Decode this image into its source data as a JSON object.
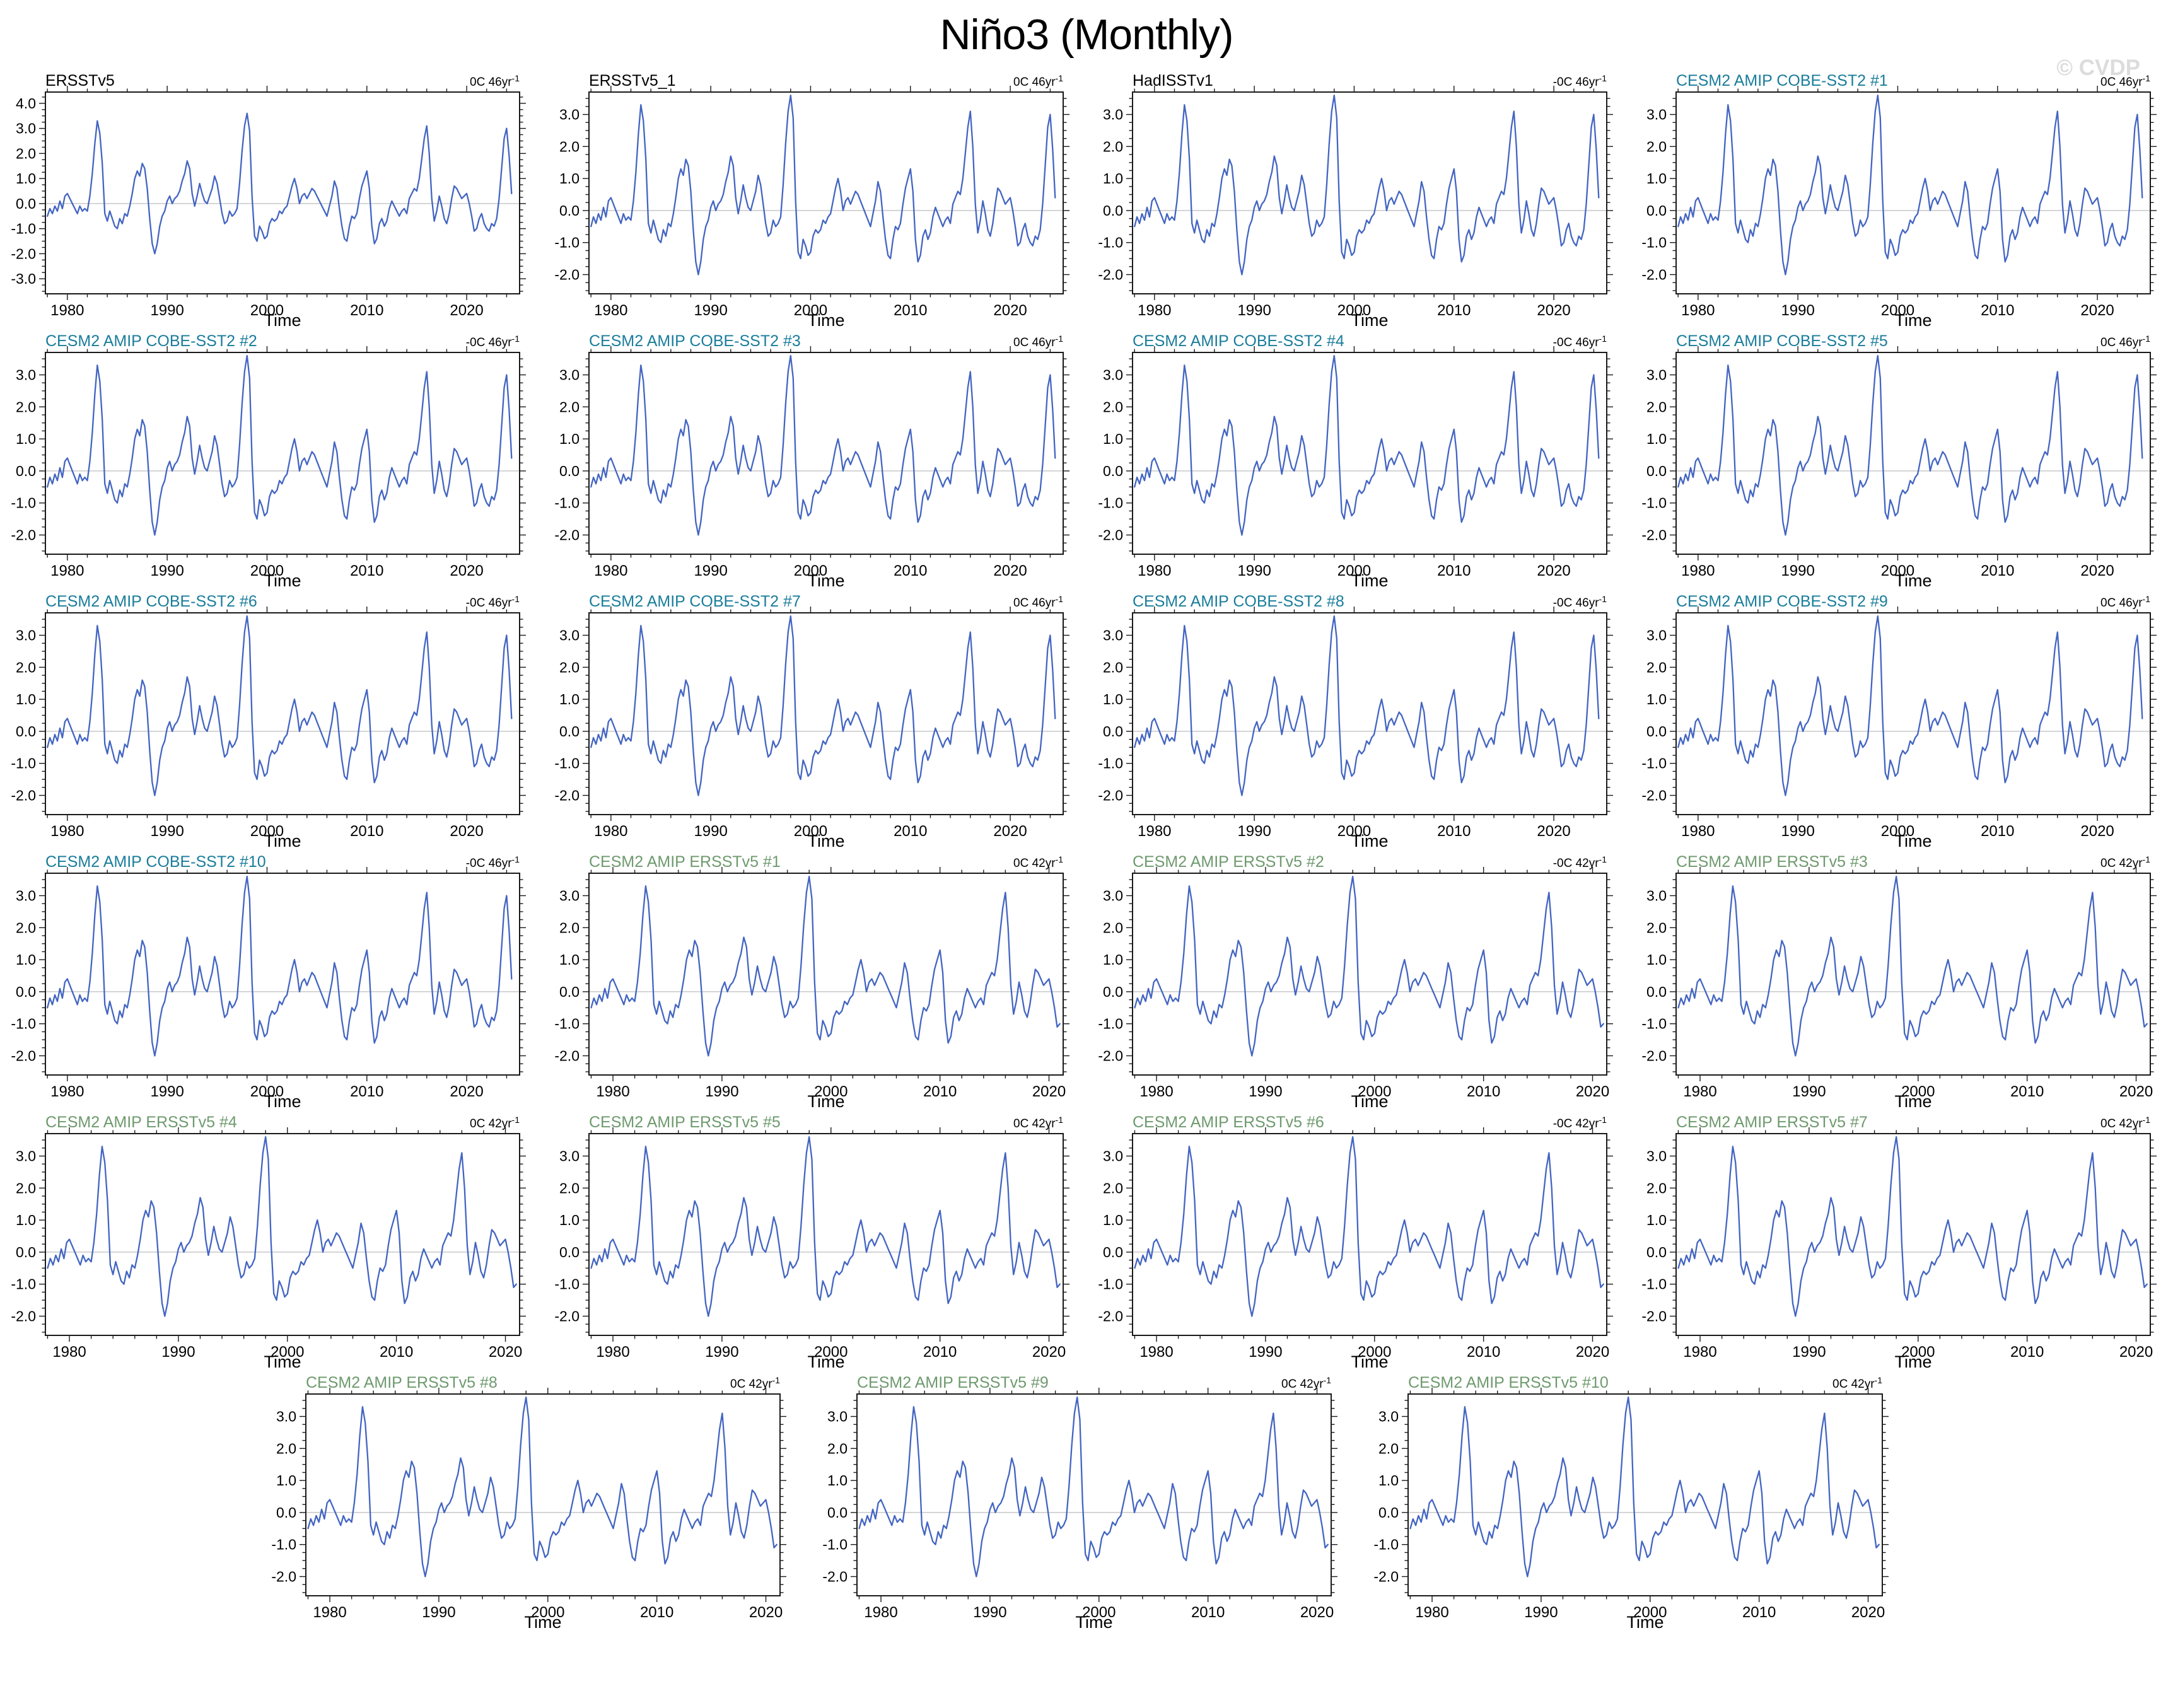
{
  "page": {
    "title": "Niño3 (Monthly)",
    "watermark": "© CVDP"
  },
  "colors": {
    "obs": "#000000",
    "cobe": "#1a7d9b",
    "ersst": "#6e9a6e",
    "line": "#4365c2",
    "zero_line": "#c8c8c8",
    "axis": "#1a1a1a",
    "watermark": "#dcdcdc"
  },
  "chart_data": {
    "type": "line",
    "title": "Niño3 (Monthly)",
    "xlabel": "Time",
    "ylabel": "",
    "grid": false,
    "legend": "none",
    "x_start": 1978.0,
    "x_step": 0.25,
    "x_major_ticks": [
      1980,
      1990,
      2000,
      2010,
      2020
    ],
    "x_minor_step": 2,
    "y_minor_step": 0.25,
    "series_values": [
      -0.5,
      -0.2,
      -0.4,
      -0.1,
      -0.3,
      0.1,
      -0.2,
      0.3,
      0.4,
      0.2,
      0.0,
      -0.2,
      -0.4,
      -0.1,
      -0.3,
      -0.2,
      -0.3,
      0.3,
      1.2,
      2.4,
      3.3,
      2.8,
      1.6,
      -0.4,
      -0.7,
      -0.3,
      -0.6,
      -0.9,
      -1.0,
      -0.6,
      -0.8,
      -0.4,
      -0.5,
      -0.1,
      0.4,
      1.0,
      1.3,
      1.1,
      1.6,
      1.4,
      0.6,
      -0.6,
      -1.6,
      -2.0,
      -1.6,
      -0.9,
      -0.5,
      -0.3,
      0.1,
      0.3,
      0.0,
      0.2,
      0.3,
      0.5,
      0.9,
      1.2,
      1.7,
      1.4,
      0.4,
      -0.1,
      0.3,
      0.8,
      0.4,
      0.1,
      0.0,
      0.3,
      0.6,
      1.1,
      0.8,
      0.2,
      -0.4,
      -0.8,
      -0.7,
      -0.3,
      -0.5,
      -0.4,
      -0.2,
      0.8,
      2.1,
      3.1,
      3.6,
      2.9,
      0.3,
      -1.3,
      -1.5,
      -0.9,
      -1.1,
      -1.4,
      -1.3,
      -0.8,
      -0.6,
      -0.7,
      -0.6,
      -0.3,
      -0.4,
      -0.2,
      -0.1,
      0.3,
      0.7,
      1.0,
      0.6,
      0.0,
      0.3,
      0.4,
      0.2,
      0.4,
      0.6,
      0.5,
      0.3,
      0.1,
      -0.1,
      -0.3,
      -0.5,
      -0.1,
      0.3,
      0.9,
      0.6,
      -0.2,
      -0.9,
      -1.4,
      -1.5,
      -0.9,
      -0.5,
      -0.6,
      -0.4,
      0.2,
      0.7,
      1.0,
      1.3,
      0.6,
      -0.9,
      -1.6,
      -1.4,
      -0.8,
      -0.6,
      -0.9,
      -0.7,
      -0.2,
      0.1,
      -0.1,
      -0.3,
      -0.5,
      -0.3,
      -0.2,
      -0.4,
      0.2,
      0.4,
      0.6,
      0.5,
      1.0,
      1.8,
      2.6,
      3.1,
      2.0,
      0.2,
      -0.7,
      -0.3,
      0.3,
      -0.1,
      -0.6,
      -0.8,
      -0.4,
      0.2,
      0.7,
      0.6,
      0.4,
      0.2,
      0.3,
      0.4,
      0.0,
      -0.5,
      -1.1,
      -1.0,
      -0.6,
      -0.4,
      -0.8,
      -1.0,
      -1.1,
      -0.8,
      -0.9,
      -0.6,
      0.2,
      1.4,
      2.6,
      3.0,
      1.9,
      0.4
    ],
    "panels": [
      {
        "title": "ERSSTv5",
        "group": "obs",
        "trend": "0C 46yr",
        "trend_exp": "-1",
        "xmin": 1977.8,
        "xmax": 2025.3,
        "data_end": 2024.5,
        "yticks": [
          -3,
          -2,
          -1,
          0,
          1,
          2,
          3,
          4
        ],
        "ylim": [
          -3.6,
          4.45
        ]
      },
      {
        "title": "ERSSTv5_1",
        "group": "obs",
        "trend": "0C 46yr",
        "trend_exp": "-1",
        "xmin": 1977.8,
        "xmax": 2025.3,
        "data_end": 2024.5,
        "yticks": [
          -2,
          -1,
          0,
          1,
          2,
          3
        ],
        "ylim": [
          -2.6,
          3.7
        ]
      },
      {
        "title": "HadISSTv1",
        "group": "obs",
        "trend": "-0C 46yr",
        "trend_exp": "-1",
        "xmin": 1977.8,
        "xmax": 2025.3,
        "data_end": 2024.5,
        "yticks": [
          -2,
          -1,
          0,
          1,
          2,
          3
        ],
        "ylim": [
          -2.6,
          3.7
        ]
      },
      {
        "title": "CESM2 AMIP COBE-SST2 #1",
        "group": "cobe",
        "trend": "0C 46yr",
        "trend_exp": "-1",
        "xmin": 1977.8,
        "xmax": 2025.3,
        "data_end": 2024.5,
        "yticks": [
          -2,
          -1,
          0,
          1,
          2,
          3
        ],
        "ylim": [
          -2.6,
          3.7
        ]
      },
      {
        "title": "CESM2 AMIP COBE-SST2 #2",
        "group": "cobe",
        "trend": "-0C 46yr",
        "trend_exp": "-1",
        "xmin": 1977.8,
        "xmax": 2025.3,
        "data_end": 2024.5,
        "yticks": [
          -2,
          -1,
          0,
          1,
          2,
          3
        ],
        "ylim": [
          -2.6,
          3.7
        ]
      },
      {
        "title": "CESM2 AMIP COBE-SST2 #3",
        "group": "cobe",
        "trend": "0C 46yr",
        "trend_exp": "-1",
        "xmin": 1977.8,
        "xmax": 2025.3,
        "data_end": 2024.5,
        "yticks": [
          -2,
          -1,
          0,
          1,
          2,
          3
        ],
        "ylim": [
          -2.6,
          3.7
        ]
      },
      {
        "title": "CESM2 AMIP COBE-SST2 #4",
        "group": "cobe",
        "trend": "-0C 46yr",
        "trend_exp": "-1",
        "xmin": 1977.8,
        "xmax": 2025.3,
        "data_end": 2024.5,
        "yticks": [
          -2,
          -1,
          0,
          1,
          2,
          3
        ],
        "ylim": [
          -2.6,
          3.7
        ]
      },
      {
        "title": "CESM2 AMIP COBE-SST2 #5",
        "group": "cobe",
        "trend": "0C 46yr",
        "trend_exp": "-1",
        "xmin": 1977.8,
        "xmax": 2025.3,
        "data_end": 2024.5,
        "yticks": [
          -2,
          -1,
          0,
          1,
          2,
          3
        ],
        "ylim": [
          -2.6,
          3.7
        ]
      },
      {
        "title": "CESM2 AMIP COBE-SST2 #6",
        "group": "cobe",
        "trend": "-0C 46yr",
        "trend_exp": "-1",
        "xmin": 1977.8,
        "xmax": 2025.3,
        "data_end": 2024.5,
        "yticks": [
          -2,
          -1,
          0,
          1,
          2,
          3
        ],
        "ylim": [
          -2.6,
          3.7
        ]
      },
      {
        "title": "CESM2 AMIP COBE-SST2 #7",
        "group": "cobe",
        "trend": "0C 46yr",
        "trend_exp": "-1",
        "xmin": 1977.8,
        "xmax": 2025.3,
        "data_end": 2024.5,
        "yticks": [
          -2,
          -1,
          0,
          1,
          2,
          3
        ],
        "ylim": [
          -2.6,
          3.7
        ]
      },
      {
        "title": "CESM2 AMIP COBE-SST2 #8",
        "group": "cobe",
        "trend": "-0C 46yr",
        "trend_exp": "-1",
        "xmin": 1977.8,
        "xmax": 2025.3,
        "data_end": 2024.5,
        "yticks": [
          -2,
          -1,
          0,
          1,
          2,
          3
        ],
        "ylim": [
          -2.6,
          3.7
        ]
      },
      {
        "title": "CESM2 AMIP COBE-SST2 #9",
        "group": "cobe",
        "trend": "0C 46yr",
        "trend_exp": "-1",
        "xmin": 1977.8,
        "xmax": 2025.3,
        "data_end": 2024.5,
        "yticks": [
          -2,
          -1,
          0,
          1,
          2,
          3
        ],
        "ylim": [
          -2.6,
          3.7
        ]
      },
      {
        "title": "CESM2 AMIP COBE-SST2 #10",
        "group": "cobe",
        "trend": "-0C 46yr",
        "trend_exp": "-1",
        "xmin": 1977.8,
        "xmax": 2025.3,
        "data_end": 2024.5,
        "yticks": [
          -2,
          -1,
          0,
          1,
          2,
          3
        ],
        "ylim": [
          -2.6,
          3.7
        ]
      },
      {
        "title": "CESM2 AMIP ERSSTv5 #1",
        "group": "ersst",
        "trend": "0C 42yr",
        "trend_exp": "-1",
        "xmin": 1977.8,
        "xmax": 2021.3,
        "data_end": 2021.0,
        "yticks": [
          -2,
          -1,
          0,
          1,
          2,
          3
        ],
        "ylim": [
          -2.6,
          3.7
        ]
      },
      {
        "title": "CESM2 AMIP ERSSTv5 #2",
        "group": "ersst",
        "trend": "-0C 42yr",
        "trend_exp": "-1",
        "xmin": 1977.8,
        "xmax": 2021.3,
        "data_end": 2021.0,
        "yticks": [
          -2,
          -1,
          0,
          1,
          2,
          3
        ],
        "ylim": [
          -2.6,
          3.7
        ]
      },
      {
        "title": "CESM2 AMIP ERSSTv5 #3",
        "group": "ersst",
        "trend": "0C 42yr",
        "trend_exp": "-1",
        "xmin": 1977.8,
        "xmax": 2021.3,
        "data_end": 2021.0,
        "yticks": [
          -2,
          -1,
          0,
          1,
          2,
          3
        ],
        "ylim": [
          -2.6,
          3.7
        ]
      },
      {
        "title": "CESM2 AMIP ERSSTv5 #4",
        "group": "ersst",
        "trend": "0C 42yr",
        "trend_exp": "-1",
        "xmin": 1977.8,
        "xmax": 2021.3,
        "data_end": 2021.0,
        "yticks": [
          -2,
          -1,
          0,
          1,
          2,
          3
        ],
        "ylim": [
          -2.6,
          3.7
        ]
      },
      {
        "title": "CESM2 AMIP ERSSTv5 #5",
        "group": "ersst",
        "trend": "0C 42yr",
        "trend_exp": "-1",
        "xmin": 1977.8,
        "xmax": 2021.3,
        "data_end": 2021.0,
        "yticks": [
          -2,
          -1,
          0,
          1,
          2,
          3
        ],
        "ylim": [
          -2.6,
          3.7
        ]
      },
      {
        "title": "CESM2 AMIP ERSSTv5 #6",
        "group": "ersst",
        "trend": "-0C 42yr",
        "trend_exp": "-1",
        "xmin": 1977.8,
        "xmax": 2021.3,
        "data_end": 2021.0,
        "yticks": [
          -2,
          -1,
          0,
          1,
          2,
          3
        ],
        "ylim": [
          -2.6,
          3.7
        ]
      },
      {
        "title": "CESM2 AMIP ERSSTv5 #7",
        "group": "ersst",
        "trend": "0C 42yr",
        "trend_exp": "-1",
        "xmin": 1977.8,
        "xmax": 2021.3,
        "data_end": 2021.0,
        "yticks": [
          -2,
          -1,
          0,
          1,
          2,
          3
        ],
        "ylim": [
          -2.6,
          3.7
        ]
      },
      {
        "title": "CESM2 AMIP ERSSTv5 #8",
        "group": "ersst",
        "trend": "0C 42yr",
        "trend_exp": "-1",
        "xmin": 1977.8,
        "xmax": 2021.3,
        "data_end": 2021.0,
        "yticks": [
          -2,
          -1,
          0,
          1,
          2,
          3
        ],
        "ylim": [
          -2.6,
          3.7
        ]
      },
      {
        "title": "CESM2 AMIP ERSSTv5 #9",
        "group": "ersst",
        "trend": "0C 42yr",
        "trend_exp": "-1",
        "xmin": 1977.8,
        "xmax": 2021.3,
        "data_end": 2021.0,
        "yticks": [
          -2,
          -1,
          0,
          1,
          2,
          3
        ],
        "ylim": [
          -2.6,
          3.7
        ]
      },
      {
        "title": "CESM2 AMIP ERSSTv5 #10",
        "group": "ersst",
        "trend": "0C 42yr",
        "trend_exp": "-1",
        "xmin": 1977.8,
        "xmax": 2021.3,
        "data_end": 2021.0,
        "yticks": [
          -2,
          -1,
          0,
          1,
          2,
          3
        ],
        "ylim": [
          -2.6,
          3.7
        ]
      }
    ]
  }
}
